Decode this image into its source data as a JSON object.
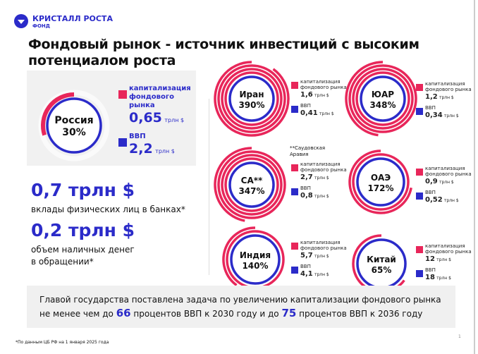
{
  "brand": {
    "name": "КРИСТАЛЛ РОСТА",
    "sub": "ФОНД"
  },
  "title": [
    "Фондовый рынок - источник инвестиций с высоким",
    "потенциалом роста"
  ],
  "colors": {
    "market_cap": "#e8265a",
    "gdp": "#2b2bc9"
  },
  "legend": {
    "cap": "капитализация фондового рынка",
    "gdp": "ВВП",
    "unit": "трлн $"
  },
  "russia": {
    "name": "Россия",
    "pct_label": "30%",
    "pct": 30,
    "cap": "0,65",
    "gdp": "2,2",
    "cap_label_1": "капитализация",
    "cap_label_2": "фондового рынка"
  },
  "countries": [
    {
      "name": "Иран",
      "pct_label": "390%",
      "pct": 390,
      "cap": "1,6",
      "gdp": "0,41"
    },
    {
      "name": "ЮАР",
      "pct_label": "348%",
      "pct": 348,
      "cap": "1,2",
      "gdp": "0,34"
    },
    {
      "name": "СА**",
      "pct_label": "347%",
      "pct": 347,
      "cap": "2,7",
      "gdp": "0,8",
      "note": "**Саудовская Аравия"
    },
    {
      "name": "ОАЭ",
      "pct_label": "172%",
      "pct": 172,
      "cap": "0,9",
      "gdp": "0,52"
    },
    {
      "name": "Индия",
      "pct_label": "140%",
      "pct": 140,
      "cap": "5,7",
      "gdp": "4,1"
    },
    {
      "name": "Китай",
      "pct_label": "65%",
      "pct": 65,
      "cap": "12",
      "gdp": "18"
    }
  ],
  "deposits": {
    "value": "0,7 трлн $",
    "label": "вклады физических лиц в банках*"
  },
  "cash": {
    "value": "0,2 трлн $",
    "label1": "объем наличных денег",
    "label2": "в обращении*"
  },
  "goal": {
    "l1": "Главой государства поставлена задача по увеличению капитализации фондового рынка",
    "l2a": "не менее чем до ",
    "n1": "66",
    "l2b": " процентов ВВП к 2030 году и до ",
    "n2": "75",
    "l2c": " процентов ВВП к 2036 году"
  },
  "footnote": "*По данным ЦБ РФ на 1 января 2025 года",
  "page_number": "1"
}
